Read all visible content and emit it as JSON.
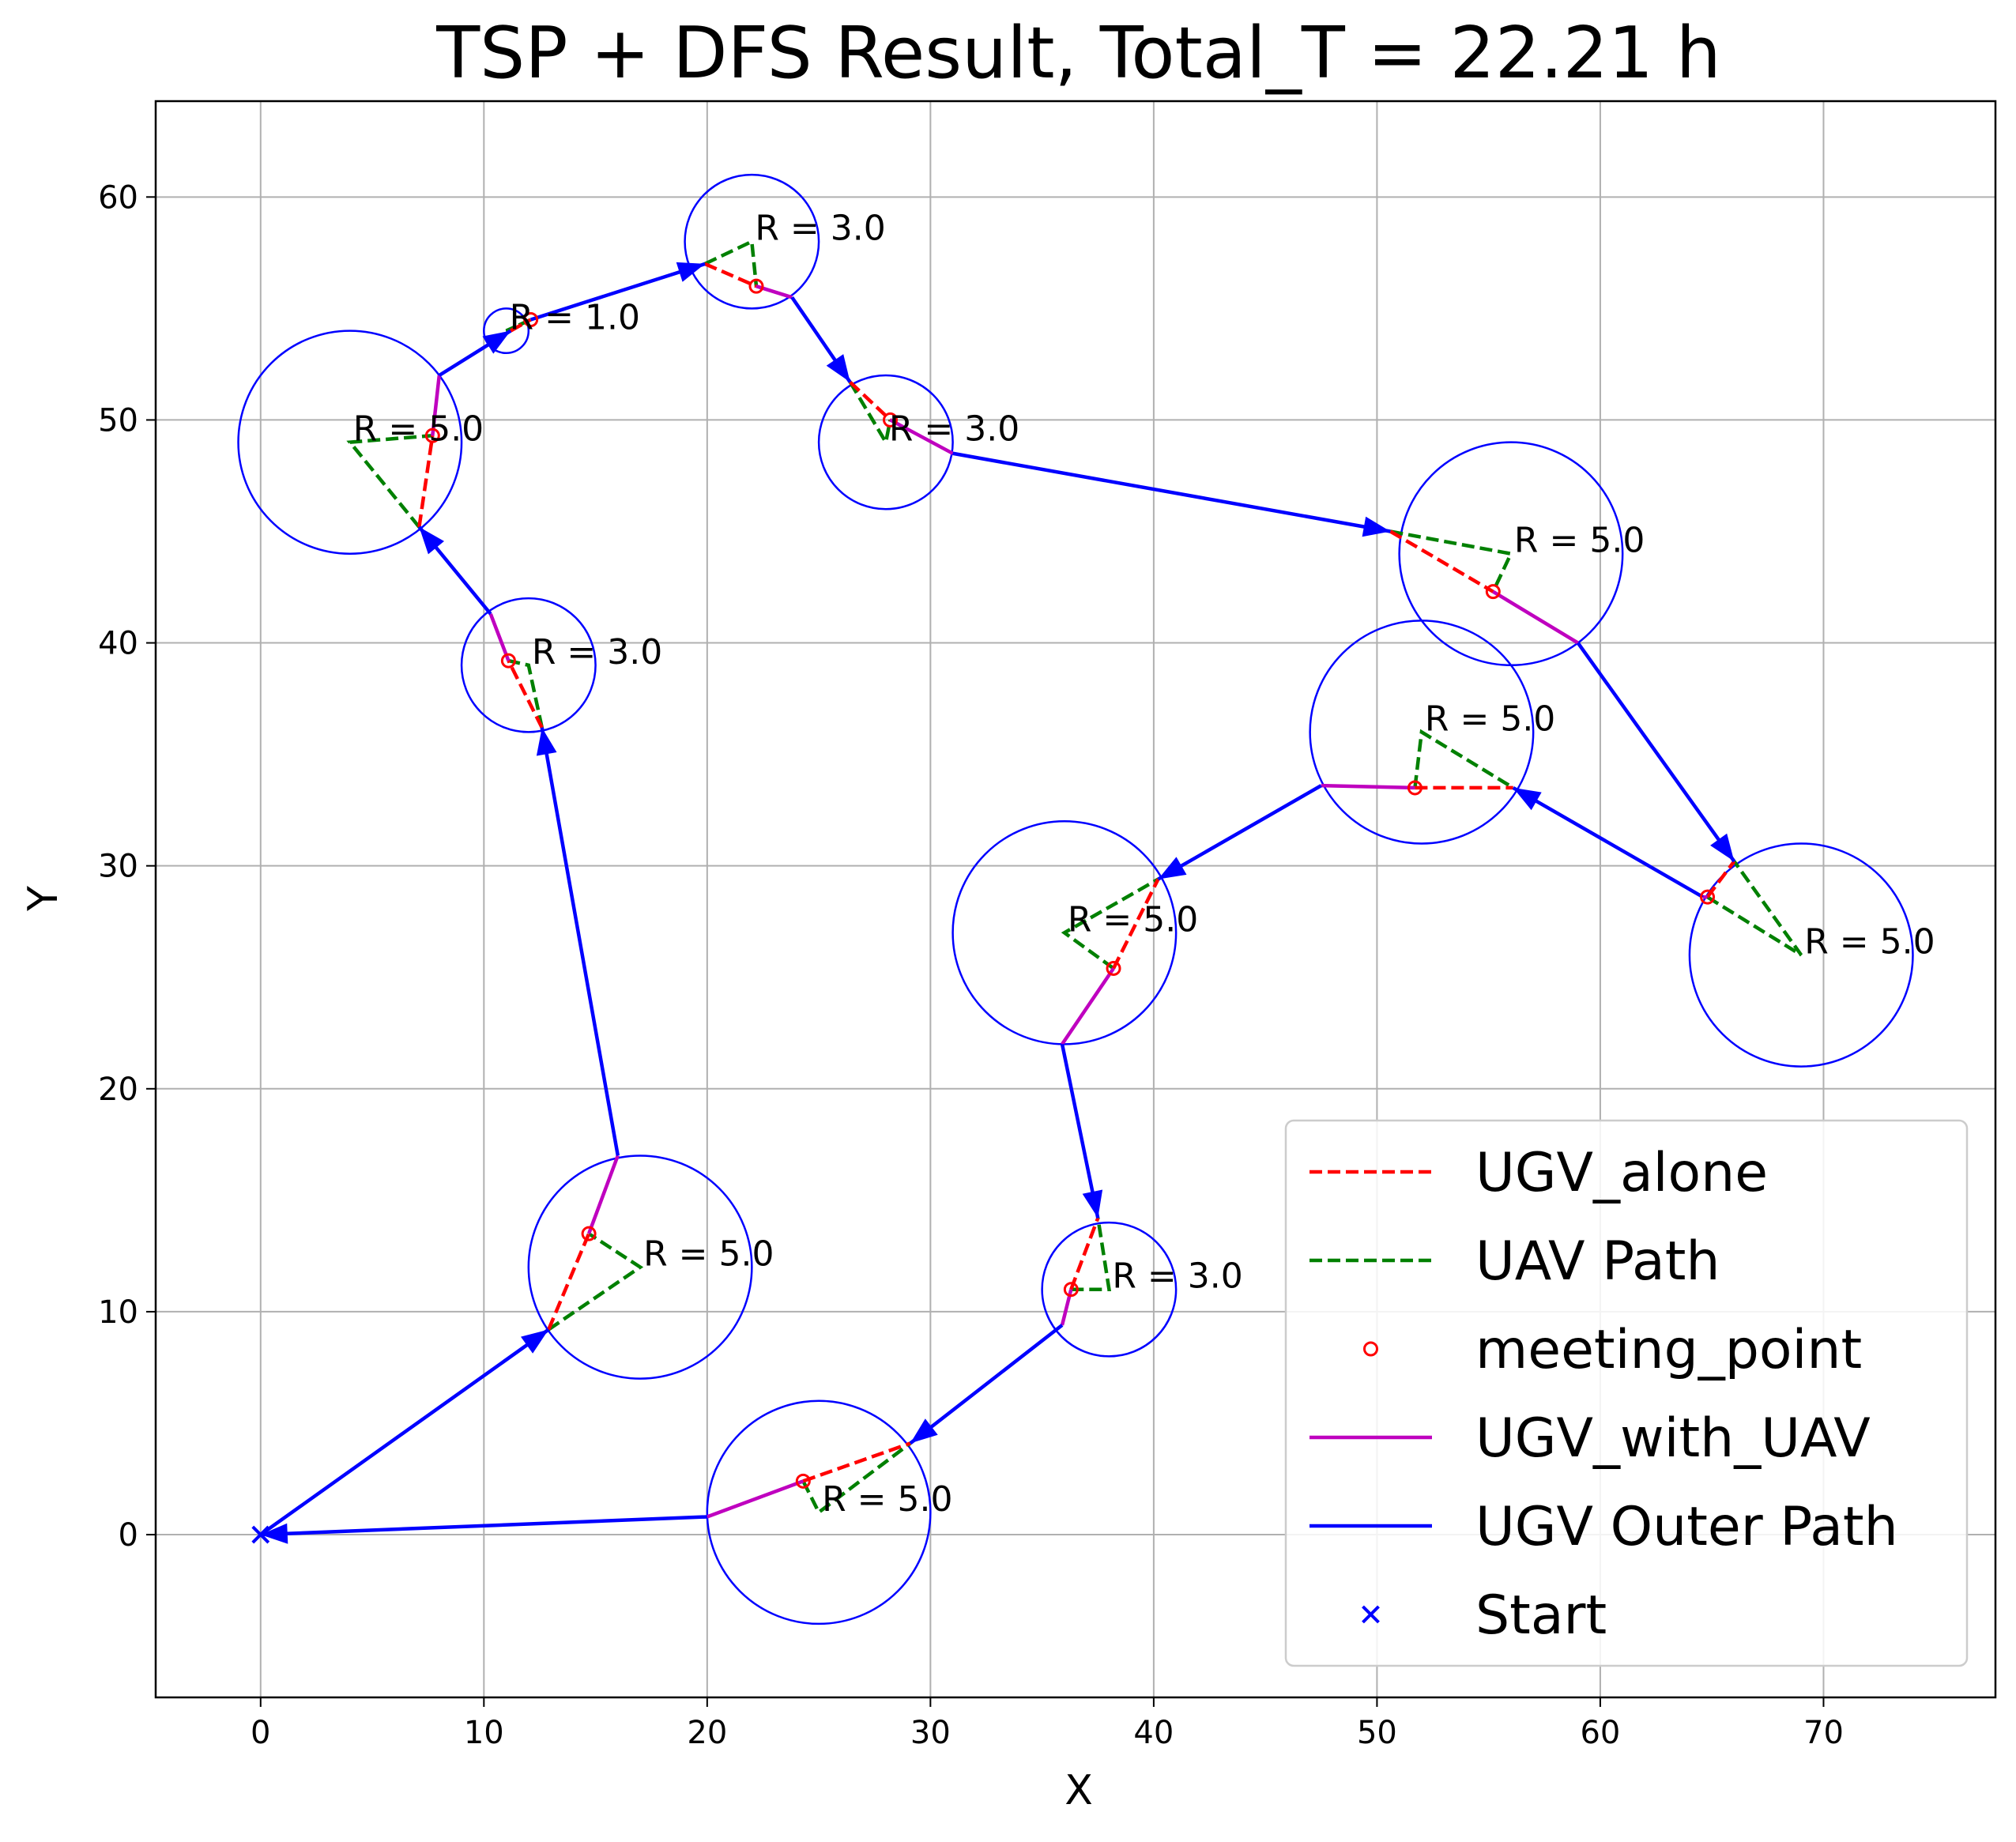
{
  "chart_data": {
    "type": "line",
    "title": "TSP + DFS Result, Total_T = 22.21 h",
    "xlabel": "X",
    "ylabel": "Y",
    "xlim": [
      -4.7,
      77.7
    ],
    "ylim": [
      -7.3,
      64.3
    ],
    "xticks": [
      0,
      10,
      20,
      30,
      40,
      50,
      60,
      70
    ],
    "yticks": [
      0,
      10,
      20,
      30,
      40,
      50,
      60
    ],
    "grid": true,
    "legend_position": "lower-right",
    "colors": {
      "ugv_alone": "#ff0000",
      "uav_path": "#008000",
      "meeting_point": "#ff0000",
      "ugv_with_uav": "#bf00bf",
      "ugv_outer": "#0000ff",
      "start": "#0000ff",
      "circle": "#0000ff",
      "grid": "#b0b0b0"
    },
    "legend": [
      {
        "label": "UGV_alone",
        "style": "dashed-line",
        "color": "#ff0000"
      },
      {
        "label": "UAV Path",
        "style": "dashed-line",
        "color": "#008000"
      },
      {
        "label": "meeting_point",
        "style": "circle-marker",
        "color": "#ff0000"
      },
      {
        "label": "UGV_with_UAV",
        "style": "solid-line",
        "color": "#bf00bf"
      },
      {
        "label": "UGV Outer Path",
        "style": "solid-line",
        "color": "#0000ff"
      },
      {
        "label": "Start",
        "style": "x-marker",
        "color": "#0000ff"
      }
    ],
    "start": [
      0,
      0
    ],
    "ugv_outer_path": [
      [
        [
          0,
          0
        ],
        [
          12.9,
          9.2
        ]
      ],
      [
        [
          16,
          17
        ],
        [
          12.6,
          36.2
        ]
      ],
      [
        [
          10.3,
          41.3
        ],
        [
          7.1,
          45.2
        ]
      ],
      [
        [
          8,
          52
        ],
        [
          11.2,
          54
        ]
      ],
      [
        [
          12.1,
          54.5
        ],
        [
          19.9,
          57
        ]
      ],
      [
        [
          23.8,
          55.5
        ],
        [
          26.4,
          51.7
        ]
      ],
      [
        [
          31,
          48.5
        ],
        [
          50.6,
          45
        ]
      ],
      [
        [
          59,
          40
        ],
        [
          66,
          30.2
        ]
      ],
      [
        [
          64.6,
          28.6
        ],
        [
          56.1,
          33.5
        ]
      ],
      [
        [
          47.5,
          33.6
        ],
        [
          40.2,
          29.4
        ]
      ],
      [
        [
          35.9,
          22
        ],
        [
          37.5,
          14.2
        ]
      ],
      [
        [
          35.9,
          9.4
        ],
        [
          29.1,
          4.1
        ]
      ],
      [
        [
          20,
          0.8
        ],
        [
          0,
          0
        ]
      ]
    ],
    "ugv_with_uav": [
      [
        [
          20,
          0.8
        ],
        [
          24.3,
          2.4
        ]
      ],
      [
        [
          35.9,
          9.4
        ],
        [
          36.3,
          11
        ]
      ],
      [
        [
          35.9,
          22
        ],
        [
          38.2,
          25.4
        ]
      ],
      [
        [
          47.5,
          33.6
        ],
        [
          51.7,
          33.5
        ]
      ],
      [
        [
          64.6,
          28.6
        ],
        [
          64.8,
          28.6
        ]
      ],
      [
        [
          55.2,
          42.3
        ],
        [
          59,
          40
        ]
      ],
      [
        [
          28.2,
          50
        ],
        [
          31,
          48.5
        ]
      ],
      [
        [
          22.2,
          56
        ],
        [
          23.8,
          55.5
        ]
      ],
      [
        [
          8,
          52
        ],
        [
          7.7,
          49.3
        ]
      ],
      [
        [
          10.3,
          41.3
        ],
        [
          11.1,
          39.2
        ]
      ],
      [
        [
          14.7,
          13.5
        ],
        [
          16,
          17
        ]
      ]
    ],
    "ugv_alone": [
      [
        [
          24.3,
          2.4
        ],
        [
          29.1,
          4.1
        ]
      ],
      [
        [
          36.3,
          11
        ],
        [
          37.5,
          14.2
        ]
      ],
      [
        [
          38.2,
          25.4
        ],
        [
          40.2,
          29.4
        ]
      ],
      [
        [
          51.7,
          33.5
        ],
        [
          56.1,
          33.5
        ]
      ],
      [
        [
          64.8,
          28.6
        ],
        [
          66,
          30.2
        ]
      ],
      [
        [
          50.6,
          45
        ],
        [
          55.2,
          42.3
        ]
      ],
      [
        [
          26.4,
          51.7
        ],
        [
          28.2,
          50
        ]
      ],
      [
        [
          19.9,
          57
        ],
        [
          22.2,
          56
        ]
      ],
      [
        [
          11.2,
          54
        ],
        [
          12.1,
          54.5
        ]
      ],
      [
        [
          7.1,
          45.2
        ],
        [
          7.7,
          49.3
        ]
      ],
      [
        [
          12.6,
          36.2
        ],
        [
          11.1,
          39.2
        ]
      ],
      [
        [
          12.9,
          9.2
        ],
        [
          14.7,
          13.5
        ]
      ]
    ],
    "uav_path": [
      [
        [
          24.3,
          2.4
        ],
        [
          25,
          1
        ],
        [
          29.1,
          4.1
        ]
      ],
      [
        [
          36.3,
          11
        ],
        [
          38,
          11
        ],
        [
          37.5,
          14.2
        ]
      ],
      [
        [
          38.2,
          25.4
        ],
        [
          36,
          27
        ],
        [
          40.2,
          29.4
        ]
      ],
      [
        [
          51.7,
          33.5
        ],
        [
          52,
          36
        ],
        [
          56.1,
          33.5
        ]
      ],
      [
        [
          64.8,
          28.6
        ],
        [
          69,
          26
        ],
        [
          66,
          30.2
        ]
      ],
      [
        [
          50.6,
          45
        ],
        [
          56,
          44
        ],
        [
          55.2,
          42.3
        ]
      ],
      [
        [
          26.4,
          51.7
        ],
        [
          28,
          49
        ],
        [
          28.2,
          50
        ]
      ],
      [
        [
          19.9,
          57
        ],
        [
          22,
          58
        ],
        [
          22.2,
          56
        ]
      ],
      [
        [
          11.2,
          54
        ],
        [
          11,
          54
        ],
        [
          12.1,
          54.5
        ]
      ],
      [
        [
          7.1,
          45.2
        ],
        [
          4,
          49
        ],
        [
          7.7,
          49.3
        ]
      ],
      [
        [
          12.6,
          36.2
        ],
        [
          12,
          39
        ],
        [
          11.1,
          39.2
        ]
      ],
      [
        [
          12.9,
          9.2
        ],
        [
          17,
          12
        ],
        [
          14.7,
          13.5
        ]
      ]
    ],
    "meeting_points": [
      [
        24.3,
        2.4
      ],
      [
        36.3,
        11
      ],
      [
        38.2,
        25.4
      ],
      [
        51.7,
        33.5
      ],
      [
        64.8,
        28.6
      ],
      [
        55.2,
        42.3
      ],
      [
        28.2,
        50
      ],
      [
        22.2,
        56
      ],
      [
        12.1,
        54.5
      ],
      [
        7.7,
        49.3
      ],
      [
        11.1,
        39.2
      ],
      [
        14.7,
        13.5
      ]
    ],
    "circles": [
      {
        "center": [
          25,
          1
        ],
        "r": 5.0,
        "label": "R = 5.0"
      },
      {
        "center": [
          38,
          11
        ],
        "r": 3.0,
        "label": "R = 3.0"
      },
      {
        "center": [
          36,
          27
        ],
        "r": 5.0,
        "label": "R = 5.0"
      },
      {
        "center": [
          52,
          36
        ],
        "r": 5.0,
        "label": "R = 5.0"
      },
      {
        "center": [
          69,
          26
        ],
        "r": 5.0,
        "label": "R = 5.0"
      },
      {
        "center": [
          56,
          44
        ],
        "r": 5.0,
        "label": "R = 5.0"
      },
      {
        "center": [
          28,
          49
        ],
        "r": 3.0,
        "label": "R = 3.0"
      },
      {
        "center": [
          22,
          58
        ],
        "r": 3.0,
        "label": "R = 3.0"
      },
      {
        "center": [
          11,
          54
        ],
        "r": 1.0,
        "label": "R = 1.0"
      },
      {
        "center": [
          4,
          49
        ],
        "r": 5.0,
        "label": "R = 5.0"
      },
      {
        "center": [
          12,
          39
        ],
        "r": 3.0,
        "label": "R = 3.0"
      },
      {
        "center": [
          17,
          12
        ],
        "r": 5.0,
        "label": "R = 5.0"
      }
    ]
  }
}
